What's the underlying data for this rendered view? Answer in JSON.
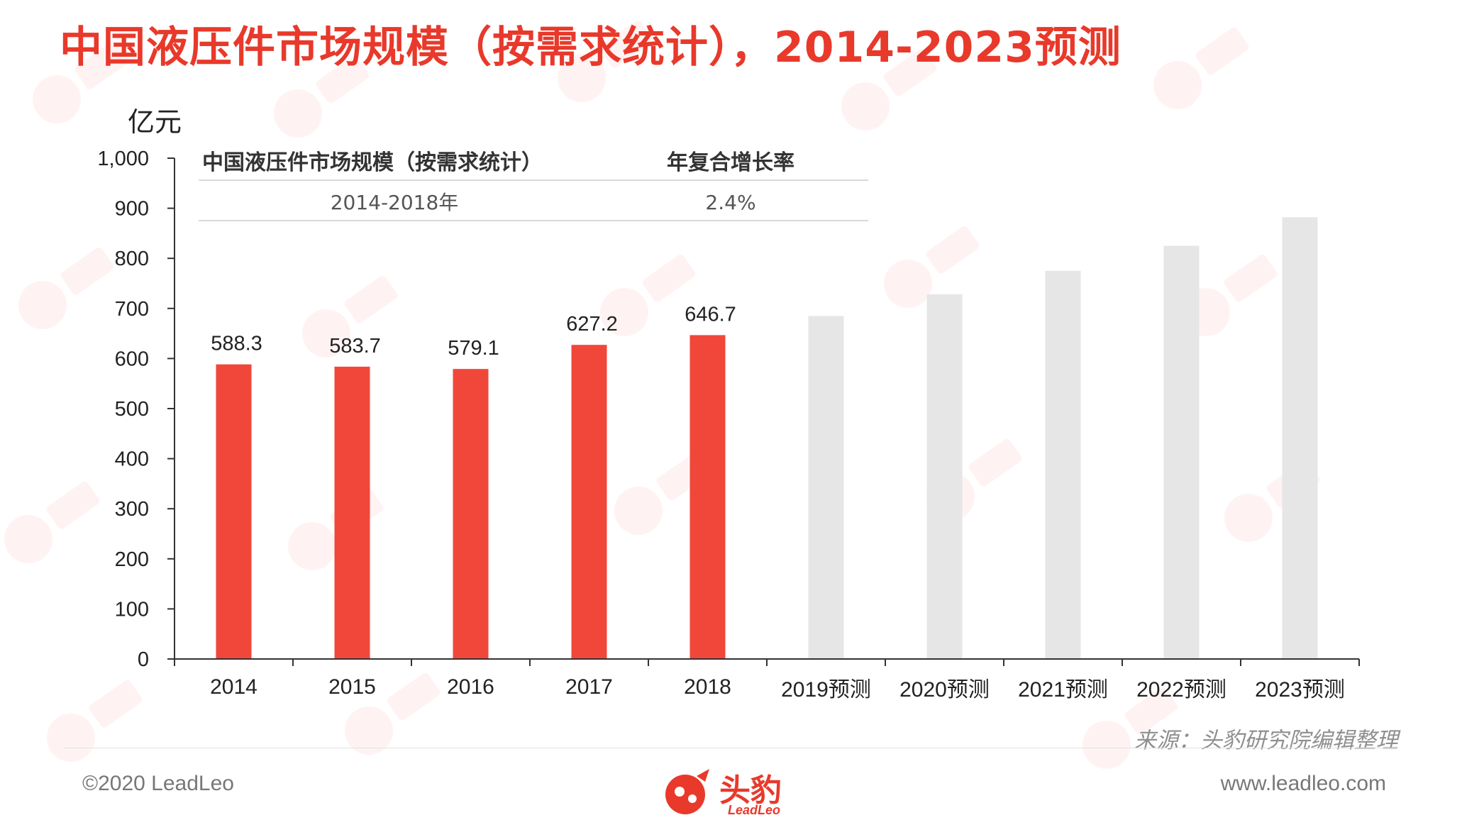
{
  "page": {
    "title": "中国液压件市场规模（按需求统计），2014-2023预测",
    "source": "来源：头豹研究院编辑整理",
    "copyright": "©2020 LeadLeo",
    "website": "www.leadleo.com",
    "logo_text": "头豹",
    "logo_sub": "LeadLeo"
  },
  "chart_data": {
    "type": "bar",
    "ylabel": "亿元",
    "ylim": [
      0,
      1000
    ],
    "yticks": [
      0,
      100,
      200,
      300,
      400,
      500,
      600,
      700,
      800,
      900,
      1000
    ],
    "ytick_labels": [
      "0",
      "100",
      "200",
      "300",
      "400",
      "500",
      "600",
      "700",
      "800",
      "900",
      "1,000"
    ],
    "categories": [
      "2014",
      "2015",
      "2016",
      "2017",
      "2018",
      "2019预测",
      "2020预测",
      "2021预测",
      "2022预测",
      "2023预测"
    ],
    "values": [
      588.3,
      583.7,
      579.1,
      627.2,
      646.7,
      685,
      728,
      775,
      825,
      882
    ],
    "data_labels": [
      "588.3",
      "583.7",
      "579.1",
      "627.2",
      "646.7",
      "",
      "",
      "",
      "",
      ""
    ],
    "forecast": [
      false,
      false,
      false,
      false,
      false,
      true,
      true,
      true,
      true,
      true
    ],
    "colors": {
      "actual": "#f0473a",
      "forecast": "#e6e6e6"
    },
    "grid": false,
    "inset_table": {
      "headers": [
        "中国液压件市场规模（按需求统计）",
        "年复合增长率"
      ],
      "rows": [
        [
          "2014-2018年",
          "2.4%"
        ]
      ]
    }
  }
}
